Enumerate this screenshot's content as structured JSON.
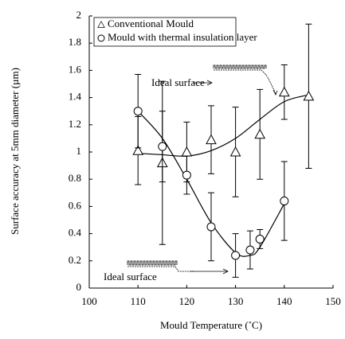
{
  "chart_data": {
    "type": "scatter",
    "x_label": "Mould Temperature (˚C)",
    "y_label": "Surface accuracy at 5mm diameter (µm)",
    "xlim": [
      100,
      150
    ],
    "xticks": [
      100,
      110,
      120,
      130,
      140,
      150
    ],
    "ylim": [
      0,
      2
    ],
    "yticks": [
      0,
      0.2,
      0.4,
      0.6,
      0.8,
      1,
      1.2,
      1.4,
      1.6,
      1.8,
      2
    ],
    "series": [
      {
        "name": "Conventional Mould",
        "marker": "triangle",
        "color": "#000000",
        "x": [
          110,
          115,
          120,
          125,
          130,
          135,
          140,
          145
        ],
        "values": [
          1.01,
          0.92,
          1.0,
          1.09,
          1.0,
          1.13,
          1.44,
          1.41
        ],
        "errors": [
          0.25,
          0.6,
          0.22,
          0.25,
          0.33,
          0.33,
          0.2,
          0.53
        ],
        "trend": {
          "x": [
            110,
            115,
            120,
            125,
            130,
            135,
            140,
            145
          ],
          "y": [
            0.99,
            0.98,
            0.97,
            1.01,
            1.1,
            1.24,
            1.37,
            1.42
          ]
        }
      },
      {
        "name": "Mould with thermal insulation layer",
        "marker": "circle",
        "color": "#000000",
        "x": [
          110,
          115,
          120,
          125,
          130,
          133,
          135,
          140
        ],
        "values": [
          1.3,
          1.04,
          0.83,
          0.45,
          0.24,
          0.28,
          0.36,
          0.64
        ],
        "errors": [
          0.27,
          0.26,
          0.14,
          0.25,
          0.16,
          0.14,
          0.07,
          0.29
        ],
        "trend": {
          "x": [
            110,
            115,
            120,
            125,
            130,
            133,
            135,
            140
          ],
          "y": [
            1.3,
            1.1,
            0.8,
            0.48,
            0.26,
            0.24,
            0.3,
            0.62
          ]
        }
      }
    ],
    "annotations": [
      "Ideal surface",
      "Ideal surface"
    ]
  }
}
